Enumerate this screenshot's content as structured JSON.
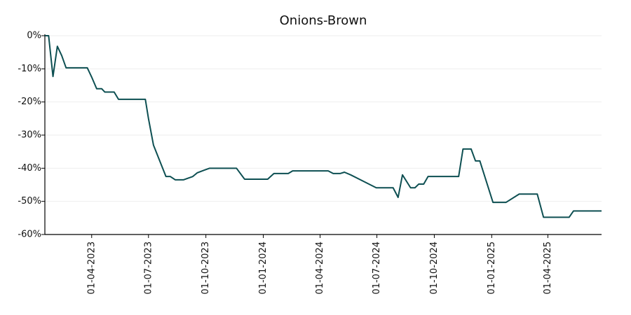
{
  "chart_data": {
    "type": "line",
    "title": "Onions-Brown",
    "x": [
      "2023-01-16",
      "2023-01-22",
      "2023-01-29",
      "2023-02-05",
      "2023-02-12",
      "2023-02-19",
      "2023-03-25",
      "2023-04-01",
      "2023-04-09",
      "2023-04-17",
      "2023-04-22",
      "2023-05-07",
      "2023-05-14",
      "2023-06-26",
      "2023-07-01",
      "2023-07-09",
      "2023-07-29",
      "2023-08-05",
      "2023-08-13",
      "2023-08-26",
      "2023-09-10",
      "2023-09-17",
      "2023-09-28",
      "2023-10-07",
      "2023-11-19",
      "2023-12-02",
      "2024-01-08",
      "2024-01-18",
      "2024-02-10",
      "2024-02-17",
      "2024-04-14",
      "2024-04-22",
      "2024-05-03",
      "2024-05-10",
      "2024-05-20",
      "2024-06-30",
      "2024-07-27",
      "2024-08-04",
      "2024-08-11",
      "2024-08-24",
      "2024-08-31",
      "2024-09-06",
      "2024-09-14",
      "2024-09-21",
      "2024-11-09",
      "2024-11-16",
      "2024-11-29",
      "2024-12-06",
      "2024-12-13",
      "2025-01-03",
      "2025-01-24",
      "2025-02-14",
      "2025-03-15",
      "2025-03-25",
      "2025-05-05",
      "2025-05-12",
      "2025-06-26"
    ],
    "series": [
      {
        "name": "Onions-Brown",
        "color": "#0d4f52",
        "values": [
          0,
          0,
          -12.3,
          -3.2,
          -6,
          -9.7,
          -9.7,
          -12.5,
          -16,
          -16,
          -17,
          -17,
          -19.2,
          -19.2,
          -25,
          -33,
          -42.5,
          -42.5,
          -43.5,
          -43.5,
          -42.5,
          -41.4,
          -40.6,
          -40,
          -40,
          -43.3,
          -43.3,
          -41.6,
          -41.6,
          -40.8,
          -40.8,
          -41.6,
          -41.6,
          -41.2,
          -42,
          -45.9,
          -45.9,
          -48.8,
          -42,
          -45.9,
          -45.9,
          -44.8,
          -44.8,
          -42.5,
          -42.5,
          -34.2,
          -34.2,
          -37.8,
          -37.8,
          -50.3,
          -50.3,
          -47.8,
          -47.8,
          -54.8,
          -54.8,
          -52.9,
          -52.9
        ]
      }
    ],
    "xlim": [
      "2023-01-16",
      "2025-06-26"
    ],
    "xticks": [
      {
        "value": "2023-04-01",
        "label": "01-04-2023"
      },
      {
        "value": "2023-07-01",
        "label": "01-07-2023"
      },
      {
        "value": "2023-10-01",
        "label": "01-10-2023"
      },
      {
        "value": "2024-01-01",
        "label": "01-01-2024"
      },
      {
        "value": "2024-04-01",
        "label": "01-04-2024"
      },
      {
        "value": "2024-07-01",
        "label": "01-07-2024"
      },
      {
        "value": "2024-10-01",
        "label": "01-10-2024"
      },
      {
        "value": "2025-01-01",
        "label": "01-01-2025"
      },
      {
        "value": "2025-04-01",
        "label": "01-04-2025"
      }
    ],
    "ylim": [
      -60,
      0
    ],
    "yticks": [
      {
        "value": 0,
        "label": "0%"
      },
      {
        "value": -10,
        "label": "-10%"
      },
      {
        "value": -20,
        "label": "-20%"
      },
      {
        "value": -30,
        "label": "-30%"
      },
      {
        "value": -40,
        "label": "-40%"
      },
      {
        "value": -50,
        "label": "-50%"
      },
      {
        "value": -60,
        "label": "-60%"
      }
    ],
    "grid": true
  }
}
